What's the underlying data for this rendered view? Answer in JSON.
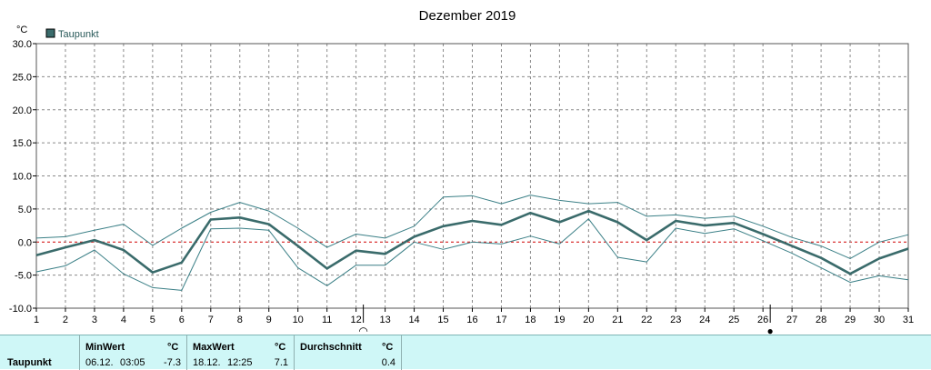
{
  "chart_data": {
    "type": "line",
    "title": "Dezember 2019",
    "ylabel": "°C",
    "legend": {
      "label": "Taupunkt",
      "color": "#3a6b6b",
      "placement": "top-left"
    },
    "ylim": [
      -10,
      30
    ],
    "yticks": [
      "30.0",
      "25.0",
      "20.0",
      "15.0",
      "10.0",
      "5.0",
      "0.0",
      "-5.0",
      "-10.0"
    ],
    "x": [
      1,
      2,
      3,
      4,
      5,
      6,
      7,
      8,
      9,
      10,
      11,
      12,
      13,
      14,
      15,
      16,
      17,
      18,
      19,
      20,
      21,
      22,
      23,
      24,
      25,
      26,
      27,
      28,
      29,
      30,
      31
    ],
    "xticks": [
      "1",
      "2",
      "3",
      "4",
      "5",
      "6",
      "7",
      "8",
      "9",
      "10",
      "11",
      "12",
      "13",
      "14",
      "15",
      "16",
      "17",
      "18",
      "19",
      "20",
      "21",
      "22",
      "23",
      "24",
      "25",
      "26",
      "27",
      "28",
      "29",
      "30",
      "31"
    ],
    "grid": true,
    "zero_line_color": "#d00000",
    "series": [
      {
        "role": "mean",
        "color": "#3a6b6b",
        "values": [
          -2.0,
          -0.8,
          0.3,
          -1.2,
          -4.6,
          -3.1,
          3.4,
          3.7,
          2.7,
          -0.6,
          -4.0,
          -1.3,
          -1.8,
          0.8,
          2.4,
          3.2,
          2.6,
          4.4,
          3.0,
          4.7,
          3.0,
          0.3,
          3.2,
          2.5,
          2.9,
          1.2,
          -0.6,
          -2.4,
          -4.8,
          -2.5,
          -1.0
        ]
      },
      {
        "role": "max",
        "color": "#3a7f86",
        "values": [
          0.6,
          0.8,
          1.8,
          2.7,
          -0.5,
          2.1,
          4.5,
          6.0,
          4.7,
          2.1,
          -0.8,
          1.2,
          0.6,
          2.4,
          6.8,
          7.0,
          5.8,
          7.1,
          6.3,
          5.8,
          6.0,
          3.9,
          4.1,
          3.6,
          3.9,
          2.4,
          0.7,
          -0.6,
          -2.5,
          0.0,
          1.1
        ]
      },
      {
        "role": "min",
        "color": "#3a7f86",
        "values": [
          -4.5,
          -3.6,
          -1.2,
          -4.8,
          -6.9,
          -7.3,
          2.0,
          2.1,
          1.8,
          -3.9,
          -6.6,
          -3.5,
          -3.5,
          0.0,
          -1.1,
          0.0,
          -0.3,
          0.9,
          -0.3,
          3.5,
          -2.3,
          -3.0,
          2.1,
          1.3,
          2.0,
          0.2,
          -1.7,
          -3.9,
          -6.1,
          -5.1,
          -5.7
        ]
      }
    ],
    "markers": [
      {
        "day": 12,
        "symbol": "moon-first-quarter-icon",
        "glyph": "◠"
      },
      {
        "day": 26,
        "symbol": "new-moon-icon",
        "glyph": "●"
      }
    ]
  },
  "stats_panel": {
    "row_label": "Taupunkt",
    "min": {
      "header": "MinWert",
      "unit": "°C",
      "date": "06.12.",
      "time": "03:05",
      "value": "-7.3"
    },
    "max": {
      "header": "MaxWert",
      "unit": "°C",
      "date": "18.12.",
      "time": "12:25",
      "value": "7.1"
    },
    "avg": {
      "header": "Durchschnitt",
      "unit": "°C",
      "value": "0.4"
    }
  }
}
